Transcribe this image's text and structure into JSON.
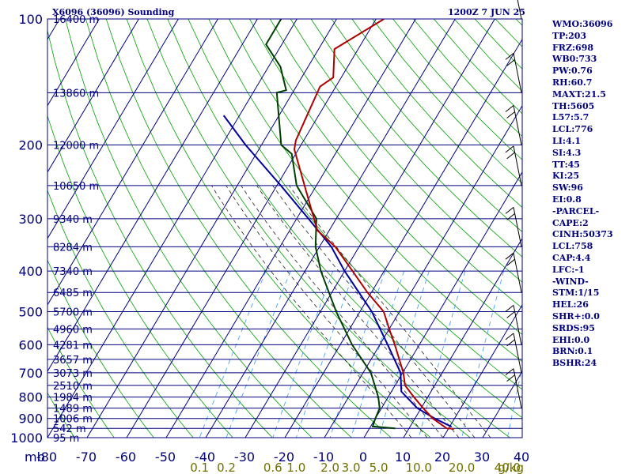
{
  "header": {
    "station_title": "X6096 (36096) Sounding",
    "time_label": "1200Z  7 JUN 25"
  },
  "indices": [
    "WMO:36096",
    "TP:203",
    "FRZ:698",
    "WB0:733",
    "PW:0.76",
    "RH:60.7",
    "MAXT:21.5",
    "TH:5605",
    "L57:5.7",
    "LCL:776",
    "LI:4.1",
    "SI:4.3",
    "TT:45",
    "KI:25",
    "SW:96",
    "EI:0.8",
    "-PARCEL-",
    "CAPE:2",
    "CINH:50373",
    "LCL:758",
    "CAP:4.4",
    "LFC:-1",
    "-WIND-",
    "STM:1/15",
    "HEL:26",
    "SHR+:0.0",
    "SRDS:95",
    "EHI:0.0",
    "BRN:0.1",
    "BSHR:24"
  ],
  "colors": {
    "frame": "#000080",
    "isobar": "#000080",
    "isotherm": "#000080",
    "dry_adiabat": "#00a000",
    "moist_adiabat": "#222222",
    "mixing_ratio": "#3399ff",
    "temperature": "#b00000",
    "dewpoint": "#004000",
    "parcel": "#0000a0",
    "axis_text": "#000080",
    "mixing_text": "#707000"
  },
  "chart_data": {
    "type": "skew-t",
    "y_axis_unit": "mb",
    "pressure_levels": [
      100,
      200,
      300,
      400,
      500,
      600,
      700,
      800,
      900,
      1000
    ],
    "x_ticks": [
      -80,
      -70,
      -60,
      -50,
      -40,
      -30,
      -20,
      -10,
      0,
      10,
      20,
      30,
      40
    ],
    "mixing_ratio_labels": [
      "0.1",
      "0.2",
      "0.6",
      "1.0",
      "2.0",
      "3.0",
      "5.0",
      "10.0",
      "20.0",
      "40.0"
    ],
    "mixing_ratio_unit": "g/kg",
    "height_labels": [
      {
        "p": 100,
        "text": "16400 m"
      },
      {
        "p": 150,
        "text": "13860 m"
      },
      {
        "p": 200,
        "text": "12000 m"
      },
      {
        "p": 250,
        "text": "10650 m"
      },
      {
        "p": 300,
        "text": "9340 m"
      },
      {
        "p": 350,
        "text": "8284 m"
      },
      {
        "p": 400,
        "text": "7340 m"
      },
      {
        "p": 450,
        "text": "6485 m"
      },
      {
        "p": 500,
        "text": "5700 m"
      },
      {
        "p": 550,
        "text": "4960 m"
      },
      {
        "p": 600,
        "text": "4281 m"
      },
      {
        "p": 650,
        "text": "3657 m"
      },
      {
        "p": 700,
        "text": "3073 m"
      },
      {
        "p": 750,
        "text": "2510 m"
      },
      {
        "p": 800,
        "text": "1984 m"
      },
      {
        "p": 850,
        "text": "1489 m"
      },
      {
        "p": 900,
        "text": "1006 m"
      },
      {
        "p": 950,
        "text": "542 m"
      },
      {
        "p": 1000,
        "text": "95 m"
      }
    ],
    "temperature": [
      {
        "p": 953,
        "t": 21.5
      },
      {
        "p": 950,
        "t": 19.5
      },
      {
        "p": 900,
        "t": 14.5
      },
      {
        "p": 850,
        "t": 10.5
      },
      {
        "p": 800,
        "t": 6.5
      },
      {
        "p": 750,
        "t": 2.5
      },
      {
        "p": 700,
        "t": 0.2
      },
      {
        "p": 600,
        "t": -6.2
      },
      {
        "p": 550,
        "t": -10
      },
      {
        "p": 500,
        "t": -14
      },
      {
        "p": 450,
        "t": -21
      },
      {
        "p": 400,
        "t": -28
      },
      {
        "p": 350,
        "t": -36
      },
      {
        "p": 320,
        "t": -43
      },
      {
        "p": 250,
        "t": -53
      },
      {
        "p": 205,
        "t": -61
      },
      {
        "p": 195,
        "t": -62
      },
      {
        "p": 145,
        "t": -64
      },
      {
        "p": 138,
        "t": -62
      },
      {
        "p": 118,
        "t": -66
      },
      {
        "p": 100,
        "t": -58
      }
    ],
    "dewpoint": [
      {
        "p": 950,
        "t": 6.5
      },
      {
        "p": 940,
        "t": 0.5
      },
      {
        "p": 900,
        "t": 0
      },
      {
        "p": 850,
        "t": -0.5
      },
      {
        "p": 800,
        "t": -2.5
      },
      {
        "p": 700,
        "t": -8
      },
      {
        "p": 600,
        "t": -17
      },
      {
        "p": 500,
        "t": -26
      },
      {
        "p": 400,
        "t": -36
      },
      {
        "p": 350,
        "t": -41
      },
      {
        "p": 300,
        "t": -45
      },
      {
        "p": 250,
        "t": -55
      },
      {
        "p": 210,
        "t": -61
      },
      {
        "p": 200,
        "t": -65
      },
      {
        "p": 150,
        "t": -74
      },
      {
        "p": 148,
        "t": -72
      },
      {
        "p": 130,
        "t": -77
      },
      {
        "p": 115,
        "t": -84
      },
      {
        "p": 100,
        "t": -84
      }
    ],
    "parcel": [
      {
        "p": 942,
        "t": 20.5
      },
      {
        "p": 900,
        "t": 15
      },
      {
        "p": 850,
        "t": 9
      },
      {
        "p": 776,
        "t": 2.5
      },
      {
        "p": 700,
        "t": -0.5
      },
      {
        "p": 600,
        "t": -8
      },
      {
        "p": 500,
        "t": -17
      },
      {
        "p": 400,
        "t": -30
      },
      {
        "p": 350,
        "t": -37
      },
      {
        "p": 300,
        "t": -47
      },
      {
        "p": 250,
        "t": -59
      },
      {
        "p": 200,
        "t": -74
      },
      {
        "p": 170,
        "t": -84
      }
    ],
    "wind_barb_pressures": [
      100,
      150,
      200,
      250,
      350,
      450,
      600,
      700,
      850
    ]
  }
}
